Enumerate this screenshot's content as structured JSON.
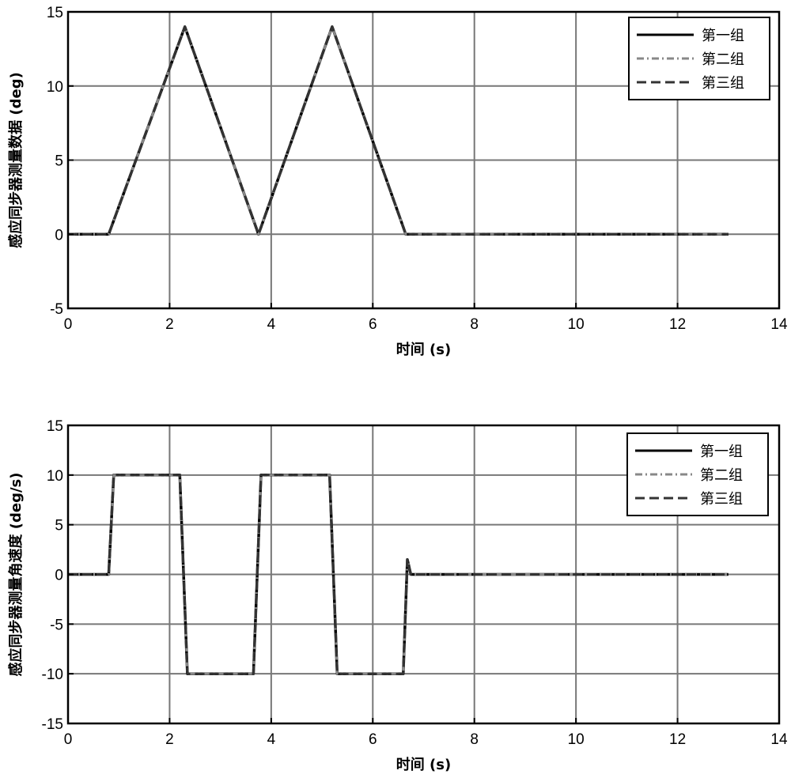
{
  "chart_data": [
    {
      "type": "line",
      "title": "",
      "xlabel": "时间 (s)",
      "ylabel": "感应同步器测量数据 (deg)",
      "xlim": [
        0,
        14
      ],
      "ylim": [
        -5,
        15
      ],
      "xticks": [
        0,
        2,
        4,
        6,
        8,
        10,
        12,
        14
      ],
      "yticks": [
        -5,
        0,
        5,
        10,
        15
      ],
      "grid": true,
      "legend_position": "top-right",
      "series": [
        {
          "name": "第一组",
          "style": "solid",
          "color": "#000000",
          "x": [
            0,
            0.8,
            2.3,
            3.75,
            5.2,
            6.65,
            13.0
          ],
          "y": [
            0,
            0,
            14,
            0,
            14,
            0,
            0
          ]
        },
        {
          "name": "第二组",
          "style": "dashdot",
          "color": "#888888",
          "x": [
            0,
            0.8,
            2.3,
            3.75,
            5.2,
            6.65,
            13.0
          ],
          "y": [
            0,
            0,
            14,
            0,
            14,
            0,
            0
          ]
        },
        {
          "name": "第三组",
          "style": "dashed",
          "color": "#333333",
          "x": [
            0,
            0.8,
            2.3,
            3.75,
            5.2,
            6.65,
            13.0
          ],
          "y": [
            0,
            0,
            14,
            0,
            14,
            0,
            0
          ]
        }
      ]
    },
    {
      "type": "line",
      "title": "",
      "xlabel": "时间 (s)",
      "ylabel": "感应同步器测量角速度 (deg/s)",
      "xlim": [
        0,
        14
      ],
      "ylim": [
        -15,
        15
      ],
      "xticks": [
        0,
        2,
        4,
        6,
        8,
        10,
        12,
        14
      ],
      "yticks": [
        -15,
        -10,
        -5,
        0,
        5,
        10,
        15
      ],
      "grid": true,
      "legend_position": "top-right",
      "series": [
        {
          "name": "第一组",
          "style": "solid",
          "color": "#000000",
          "x": [
            0,
            0.8,
            0.9,
            2.2,
            2.35,
            3.65,
            3.8,
            5.15,
            5.3,
            6.6,
            6.68,
            6.75,
            13.0
          ],
          "y": [
            0,
            0,
            10,
            10,
            -10,
            -10,
            10,
            10,
            -10,
            -10,
            1.5,
            0,
            0
          ]
        },
        {
          "name": "第二组",
          "style": "dashdot",
          "color": "#888888",
          "x": [
            0,
            0.8,
            0.9,
            2.2,
            2.35,
            3.65,
            3.8,
            5.15,
            5.3,
            6.6,
            6.68,
            6.75,
            13.0
          ],
          "y": [
            0,
            0,
            10,
            10,
            -10,
            -10,
            10,
            10,
            -10,
            -10,
            1.5,
            0,
            0
          ]
        },
        {
          "name": "第三组",
          "style": "dashed",
          "color": "#333333",
          "x": [
            0,
            0.8,
            0.9,
            2.2,
            2.35,
            3.65,
            3.8,
            5.15,
            5.3,
            6.6,
            6.68,
            6.75,
            13.0
          ],
          "y": [
            0,
            0,
            10,
            10,
            -10,
            -10,
            10,
            10,
            -10,
            -10,
            1.5,
            0,
            0
          ]
        }
      ]
    }
  ]
}
